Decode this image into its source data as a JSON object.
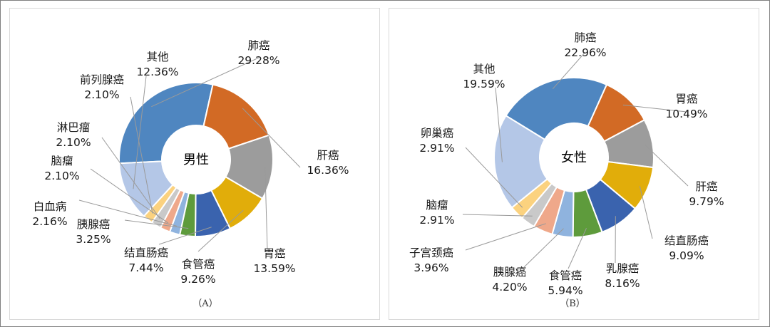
{
  "chart_data": [
    {
      "type": "pie",
      "subtype": "donut",
      "caption": "（A）",
      "center_label": "男性",
      "slices": [
        {
          "label": "肺癌",
          "value": 29.28,
          "text": "29.28%",
          "color": "#4F86C0"
        },
        {
          "label": "肝癌",
          "value": 16.36,
          "text": "16.36%",
          "color": "#D26A25"
        },
        {
          "label": "胃癌",
          "value": 13.59,
          "text": "13.59%",
          "color": "#9C9C9C"
        },
        {
          "label": "食管癌",
          "value": 9.26,
          "text": "9.26%",
          "color": "#E1AD0A"
        },
        {
          "label": "结直肠癌",
          "value": 7.44,
          "text": "7.44%",
          "color": "#3A63AE"
        },
        {
          "label": "胰腺癌",
          "value": 3.25,
          "text": "3.25%",
          "color": "#5E9B3C"
        },
        {
          "label": "白血病",
          "value": 2.16,
          "text": "2.16%",
          "color": "#8FB3DE"
        },
        {
          "label": "脑瘤",
          "value": 2.1,
          "text": "2.10%",
          "color": "#EFA88A"
        },
        {
          "label": "淋巴瘤",
          "value": 2.1,
          "text": "2.10%",
          "color": "#C9C9C9"
        },
        {
          "label": "前列腺癌",
          "value": 2.1,
          "text": "2.10%",
          "color": "#FBD27F"
        },
        {
          "label": "其他",
          "value": 12.36,
          "text": "12.36%",
          "color": "#B4C7E7"
        }
      ]
    },
    {
      "type": "pie",
      "subtype": "donut",
      "caption": "（B）",
      "center_label": "女性",
      "slices": [
        {
          "label": "肺癌",
          "value": 22.96,
          "text": "22.96%",
          "color": "#4F86C0"
        },
        {
          "label": "胃癌",
          "value": 10.49,
          "text": "10.49%",
          "color": "#D26A25"
        },
        {
          "label": "肝癌",
          "value": 9.79,
          "text": "9.79%",
          "color": "#9C9C9C"
        },
        {
          "label": "结直肠癌",
          "value": 9.09,
          "text": "9.09%",
          "color": "#E1AD0A"
        },
        {
          "label": "乳腺癌",
          "value": 8.16,
          "text": "8.16%",
          "color": "#3A63AE"
        },
        {
          "label": "食管癌",
          "value": 5.94,
          "text": "5.94%",
          "color": "#5E9B3C"
        },
        {
          "label": "胰腺癌",
          "value": 4.2,
          "text": "4.20%",
          "color": "#8FB3DE"
        },
        {
          "label": "子宫颈癌",
          "value": 3.96,
          "text": "3.96%",
          "color": "#EFA88A"
        },
        {
          "label": "脑瘤",
          "value": 2.91,
          "text": "2.91%",
          "color": "#C9C9C9"
        },
        {
          "label": "卵巢癌",
          "value": 2.91,
          "text": "2.91%",
          "color": "#FBD27F"
        },
        {
          "label": "其他",
          "value": 19.59,
          "text": "19.59%",
          "color": "#B4C7E7"
        }
      ]
    }
  ]
}
